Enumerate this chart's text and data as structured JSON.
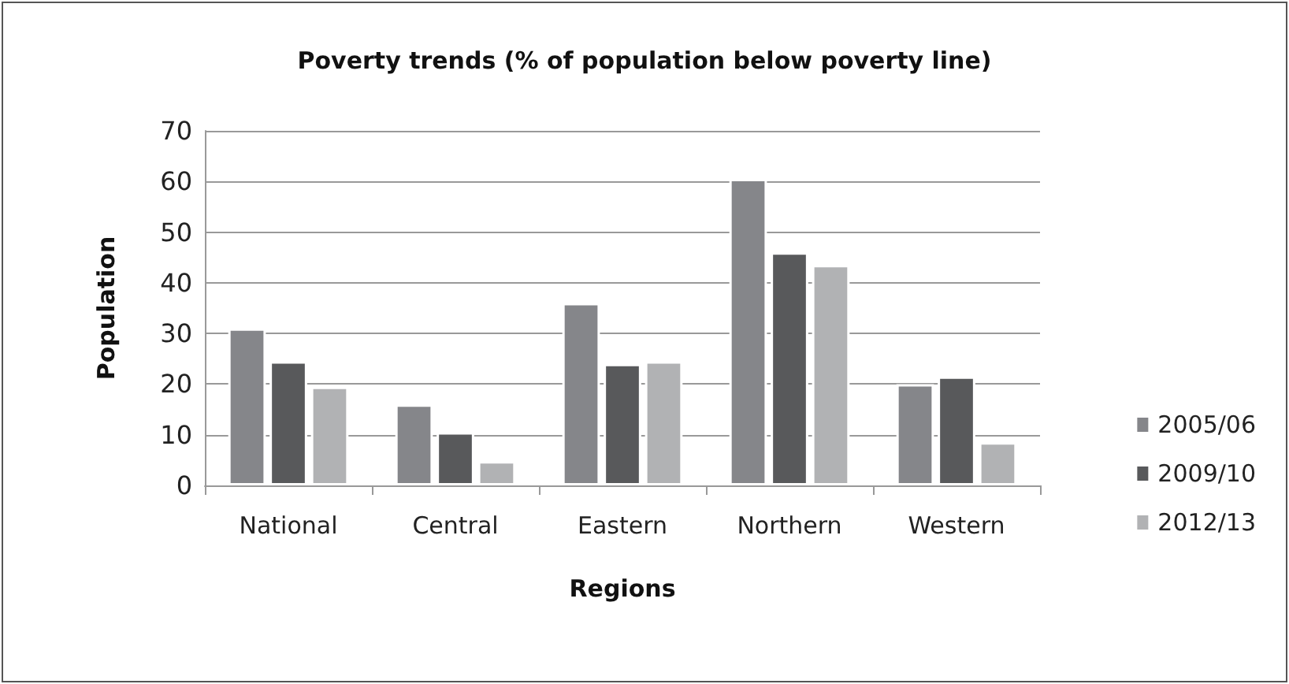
{
  "chart_data": {
    "type": "bar",
    "title": "Poverty trends (% of population below poverty line)",
    "xlabel": "Regions",
    "ylabel": "Population",
    "categories": [
      "National",
      "Central",
      "Eastern",
      "Northern",
      "Western"
    ],
    "series": [
      {
        "name": "2005/06",
        "color": "#85868a",
        "values": [
          31,
          16,
          36,
          60.5,
          20
        ]
      },
      {
        "name": "2009/10",
        "color": "#58595b",
        "values": [
          24.5,
          10.5,
          24,
          46,
          21.5
        ]
      },
      {
        "name": "2012/13",
        "color": "#b1b2b4",
        "values": [
          19.5,
          4.8,
          24.5,
          43.5,
          8.5
        ]
      }
    ],
    "ylim": [
      0,
      70
    ],
    "yticks": [
      0,
      10,
      20,
      30,
      40,
      50,
      60,
      70
    ],
    "grid": "y",
    "legend": "right"
  }
}
